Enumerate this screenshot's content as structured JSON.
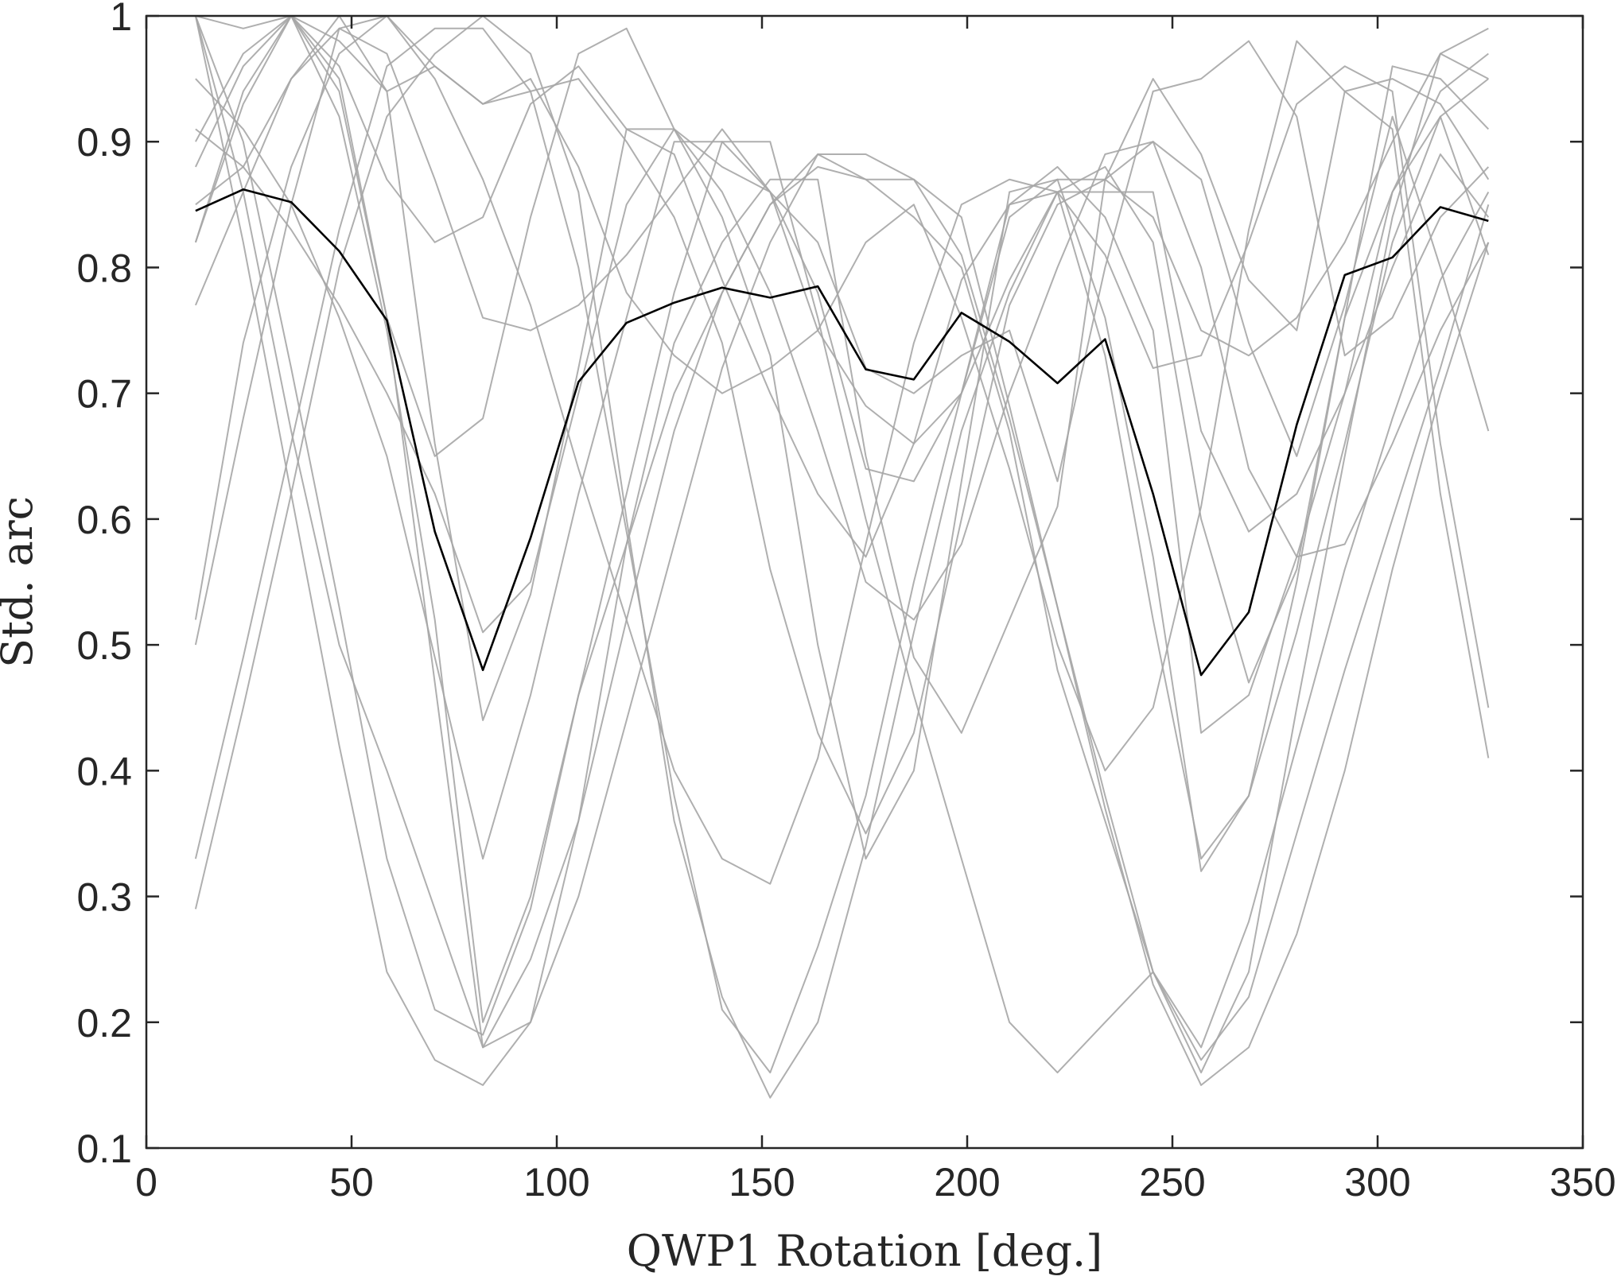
{
  "chart_data": {
    "type": "line",
    "title": "",
    "xlabel": "QWP1 Rotation [deg.]",
    "ylabel": "Std. arc",
    "xlim": [
      0,
      350
    ],
    "ylim": [
      0.1,
      1
    ],
    "xticks": [
      0,
      50,
      100,
      150,
      200,
      250,
      300,
      350
    ],
    "yticks": [
      0.1,
      0.2,
      0.3,
      0.4,
      0.5,
      0.6,
      0.7,
      0.8,
      0.9,
      1
    ],
    "xtick_labels": [
      "0",
      "50",
      "100",
      "150",
      "200",
      "250",
      "300",
      "350"
    ],
    "ytick_labels": [
      "0.1",
      "0.2",
      "0.3",
      "0.4",
      "0.5",
      "0.6",
      "0.7",
      "0.8",
      "0.9",
      "1"
    ],
    "grid": false,
    "legend": "none",
    "colors": {
      "trial_lines": "#a6a6a6",
      "mean_line": "#000000",
      "axes": "#262626"
    },
    "x": [
      12,
      23.6,
      35.3,
      47,
      58.6,
      70.3,
      82,
      93.6,
      105.3,
      117,
      128.6,
      140.3,
      152,
      163.6,
      175.3,
      187,
      198.6,
      210.3,
      222,
      233.6,
      245.3,
      257,
      268.6,
      280.3,
      292,
      303.6,
      315.3,
      327
    ],
    "series": [
      {
        "role": "mean",
        "values": [
          0.845,
          0.862,
          0.852,
          0.813,
          0.758,
          0.59,
          0.48,
          0.585,
          0.709,
          0.756,
          0.772,
          0.784,
          0.776,
          0.785,
          0.719,
          0.711,
          0.764,
          0.741,
          0.708,
          0.743,
          0.62,
          0.476,
          0.526,
          0.675,
          0.794,
          0.808,
          0.848,
          0.837
        ]
      },
      {
        "role": "trial",
        "values": [
          1.0,
          0.99,
          1.0,
          0.94,
          0.76,
          0.47,
          0.18,
          0.25,
          0.36,
          0.58,
          0.74,
          0.82,
          0.87,
          0.87,
          0.65,
          0.49,
          0.43,
          0.52,
          0.61,
          0.87,
          0.95,
          0.89,
          0.79,
          0.75,
          0.94,
          0.95,
          0.93,
          0.87
        ]
      },
      {
        "role": "trial",
        "values": [
          0.77,
          0.86,
          0.95,
          1.0,
          0.94,
          0.66,
          0.44,
          0.54,
          0.72,
          0.91,
          0.91,
          0.84,
          0.73,
          0.5,
          0.33,
          0.4,
          0.63,
          0.86,
          0.87,
          0.76,
          0.57,
          0.32,
          0.38,
          0.55,
          0.76,
          0.86,
          0.92,
          0.81
        ]
      },
      {
        "role": "trial",
        "values": [
          0.9,
          0.97,
          1.0,
          0.92,
          0.75,
          0.52,
          0.2,
          0.3,
          0.46,
          0.58,
          0.7,
          0.78,
          0.85,
          0.89,
          0.87,
          0.84,
          0.8,
          0.67,
          0.48,
          0.36,
          0.24,
          0.16,
          0.24,
          0.45,
          0.65,
          0.84,
          0.97,
          0.95
        ]
      },
      {
        "role": "trial",
        "values": [
          0.52,
          0.74,
          0.88,
          0.97,
          1.0,
          0.96,
          0.93,
          0.94,
          0.95,
          0.9,
          0.84,
          0.74,
          0.56,
          0.43,
          0.35,
          0.43,
          0.6,
          0.77,
          0.85,
          0.87,
          0.84,
          0.75,
          0.73,
          0.76,
          0.82,
          0.9,
          0.97,
          0.99
        ]
      },
      {
        "role": "trial",
        "values": [
          0.29,
          0.45,
          0.62,
          0.8,
          0.92,
          0.97,
          1.0,
          0.97,
          0.86,
          0.6,
          0.36,
          0.22,
          0.14,
          0.2,
          0.34,
          0.51,
          0.67,
          0.78,
          0.86,
          0.88,
          0.82,
          0.6,
          0.47,
          0.56,
          0.76,
          0.96,
          0.95,
          0.91
        ]
      },
      {
        "role": "trial",
        "values": [
          0.33,
          0.49,
          0.66,
          0.83,
          0.96,
          0.99,
          0.99,
          0.94,
          0.8,
          0.59,
          0.38,
          0.21,
          0.16,
          0.26,
          0.38,
          0.55,
          0.7,
          0.85,
          0.88,
          0.84,
          0.75,
          0.43,
          0.46,
          0.57,
          0.7,
          0.86,
          0.94,
          0.97
        ]
      },
      {
        "role": "trial",
        "values": [
          0.5,
          0.68,
          0.85,
          0.99,
          1.0,
          0.95,
          0.87,
          0.77,
          0.64,
          0.52,
          0.4,
          0.33,
          0.31,
          0.41,
          0.58,
          0.74,
          0.85,
          0.87,
          0.86,
          0.73,
          0.52,
          0.33,
          0.38,
          0.51,
          0.66,
          0.82,
          0.92,
          0.95
        ]
      },
      {
        "role": "trial",
        "values": [
          0.95,
          0.91,
          0.85,
          0.76,
          0.65,
          0.49,
          0.33,
          0.46,
          0.62,
          0.76,
          0.9,
          0.9,
          0.86,
          0.75,
          0.69,
          0.66,
          0.7,
          0.79,
          0.86,
          0.86,
          0.86,
          0.67,
          0.59,
          0.62,
          0.7,
          0.8,
          0.89,
          0.84
        ]
      },
      {
        "role": "trial",
        "values": [
          0.91,
          0.88,
          0.83,
          0.77,
          0.7,
          0.62,
          0.51,
          0.55,
          0.7,
          0.85,
          0.91,
          0.86,
          0.78,
          0.67,
          0.55,
          0.52,
          0.58,
          0.7,
          0.8,
          0.89,
          0.9,
          0.8,
          0.64,
          0.57,
          0.58,
          0.66,
          0.75,
          0.82
        ]
      },
      {
        "role": "trial",
        "values": [
          1.0,
          0.86,
          0.67,
          0.5,
          0.4,
          0.29,
          0.18,
          0.2,
          0.36,
          0.52,
          0.67,
          0.78,
          0.85,
          0.88,
          0.87,
          0.87,
          0.81,
          0.68,
          0.53,
          0.38,
          0.24,
          0.18,
          0.28,
          0.42,
          0.56,
          0.68,
          0.79,
          0.86
        ]
      },
      {
        "role": "trial",
        "values": [
          1.0,
          0.82,
          0.62,
          0.42,
          0.24,
          0.17,
          0.15,
          0.2,
          0.3,
          0.44,
          0.58,
          0.72,
          0.82,
          0.89,
          0.89,
          0.87,
          0.84,
          0.69,
          0.53,
          0.37,
          0.23,
          0.15,
          0.18,
          0.27,
          0.4,
          0.56,
          0.7,
          0.82
        ]
      },
      {
        "role": "trial",
        "values": [
          1.0,
          0.9,
          0.72,
          0.53,
          0.33,
          0.21,
          0.19,
          0.29,
          0.46,
          0.62,
          0.78,
          0.9,
          0.9,
          0.76,
          0.6,
          0.46,
          0.33,
          0.2,
          0.16,
          0.2,
          0.24,
          0.17,
          0.22,
          0.35,
          0.48,
          0.6,
          0.72,
          0.85
        ]
      },
      {
        "role": "trial",
        "values": [
          0.85,
          0.88,
          0.95,
          0.99,
          0.97,
          0.87,
          0.76,
          0.75,
          0.77,
          0.81,
          0.86,
          0.91,
          0.86,
          0.78,
          0.64,
          0.63,
          0.7,
          0.84,
          0.87,
          0.87,
          0.9,
          0.87,
          0.74,
          0.65,
          0.77,
          0.92,
          0.8,
          0.67
        ]
      },
      {
        "role": "trial",
        "values": [
          0.82,
          0.94,
          1.0,
          0.96,
          0.87,
          0.82,
          0.84,
          0.93,
          0.96,
          0.91,
          0.89,
          0.79,
          0.7,
          0.62,
          0.57,
          0.66,
          0.79,
          0.85,
          0.86,
          0.81,
          0.72,
          0.73,
          0.82,
          0.93,
          0.96,
          0.94,
          0.66,
          0.45
        ]
      },
      {
        "role": "trial",
        "values": [
          0.88,
          0.96,
          1.0,
          0.98,
          0.94,
          0.96,
          0.93,
          0.95,
          0.88,
          0.78,
          0.73,
          0.7,
          0.72,
          0.75,
          0.82,
          0.85,
          0.76,
          0.64,
          0.5,
          0.4,
          0.45,
          0.61,
          0.83,
          0.98,
          0.94,
          0.91,
          0.62,
          0.41
        ]
      },
      {
        "role": "trial",
        "values": [
          0.82,
          0.93,
          1.0,
          0.95,
          0.76,
          0.65,
          0.68,
          0.84,
          0.97,
          0.99,
          0.91,
          0.88,
          0.86,
          0.82,
          0.72,
          0.7,
          0.73,
          0.75,
          0.63,
          0.8,
          0.94,
          0.95,
          0.98,
          0.92,
          0.73,
          0.76,
          0.84,
          0.88
        ]
      }
    ]
  }
}
